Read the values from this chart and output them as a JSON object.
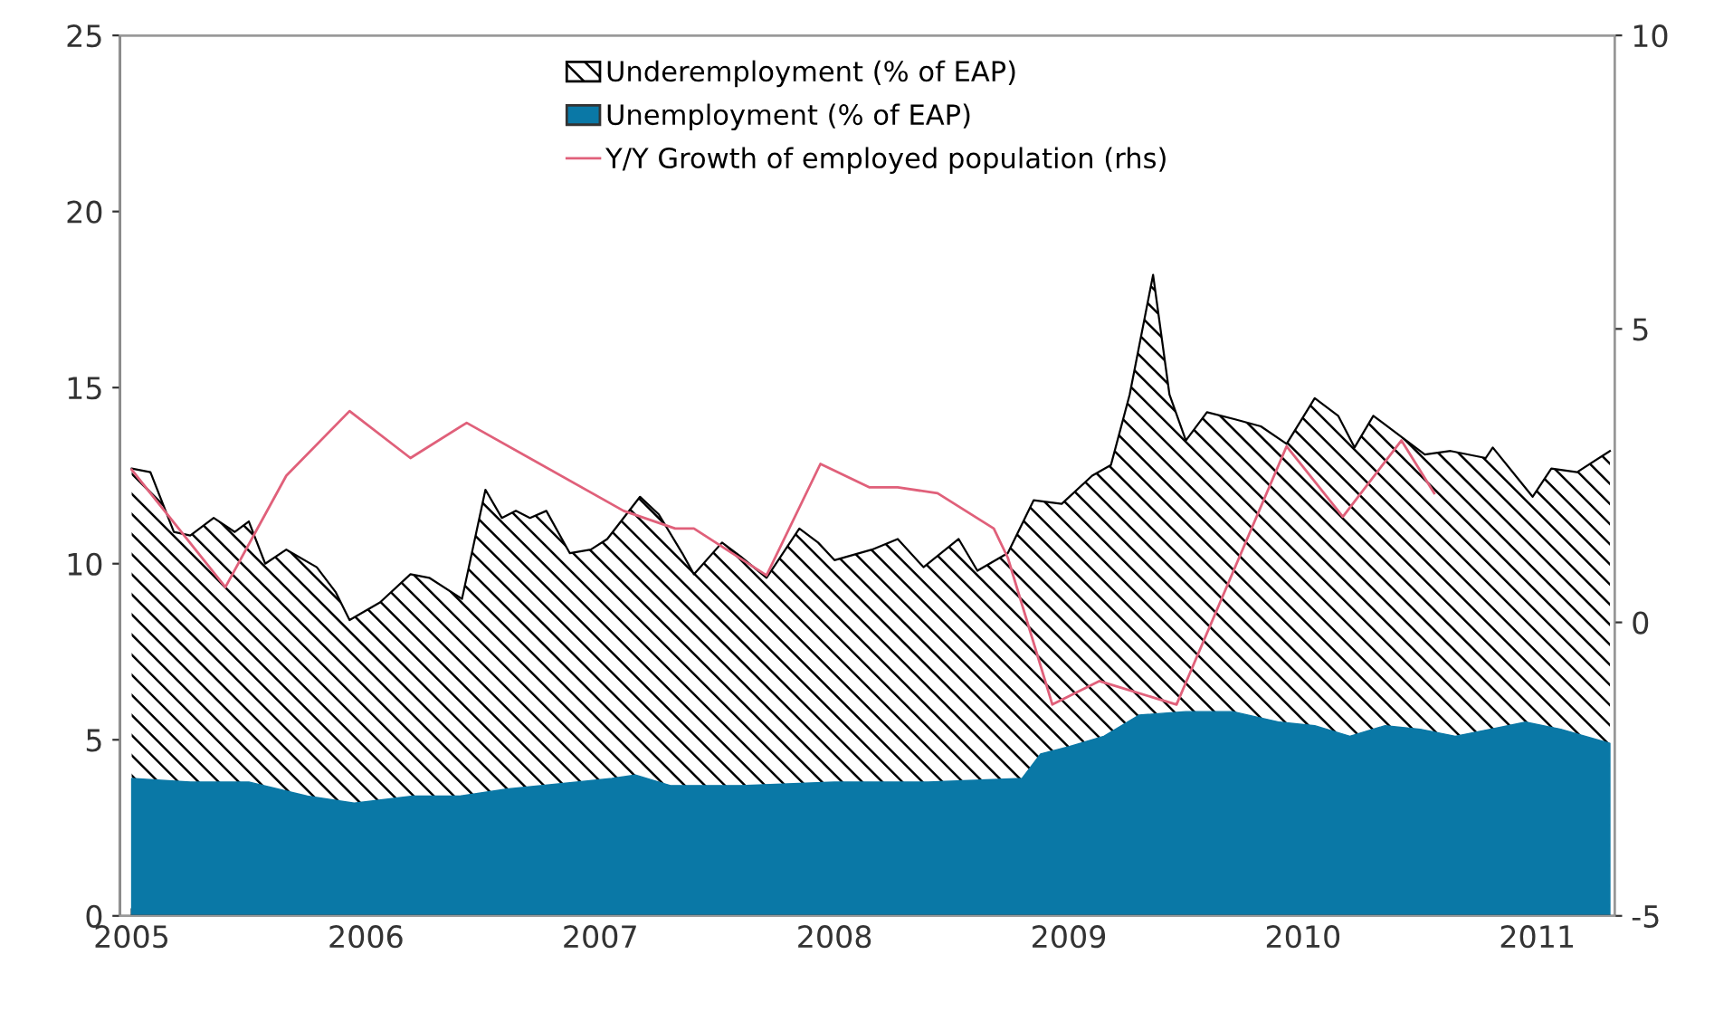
{
  "chart_data": {
    "type": "area",
    "xlim": [
      2004.95,
      2011.33
    ],
    "xticks": [
      2005,
      2006,
      2007,
      2008,
      2009,
      2010,
      2011
    ],
    "ylim": [
      0,
      25
    ],
    "yticks": [
      0,
      5,
      10,
      15,
      20,
      25
    ],
    "y2lim": [
      -5,
      10
    ],
    "y2ticks": [
      -5,
      0,
      5,
      10
    ],
    "legend": "top",
    "grid": false,
    "series": [
      {
        "name": "Underemployment (% of EAP)",
        "color": "#000000",
        "x": [
          2005.0,
          2005.08,
          2005.18,
          2005.25,
          2005.35,
          2005.44,
          2005.5,
          2005.57,
          2005.66,
          2005.79,
          2005.87,
          2005.93,
          2006.06,
          2006.19,
          2006.27,
          2006.41,
          2006.51,
          2006.58,
          2006.64,
          2006.7,
          2006.77,
          2006.87,
          2006.96,
          2007.03,
          2007.17,
          2007.25,
          2007.35,
          2007.4,
          2007.52,
          2007.6,
          2007.71,
          2007.85,
          2007.93,
          2008.0,
          2008.16,
          2008.27,
          2008.38,
          2008.53,
          2008.61,
          2008.74,
          2008.85,
          2008.97,
          2009.1,
          2009.18,
          2009.26,
          2009.36,
          2009.43,
          2009.5,
          2009.59,
          2009.71,
          2009.82,
          2009.93,
          2010.05,
          2010.15,
          2010.22,
          2010.3,
          2010.42,
          2010.52,
          2010.63,
          2010.78,
          2010.81,
          2010.98,
          2011.06,
          2011.17,
          2011.31
        ],
        "values": [
          12.7,
          12.6,
          10.9,
          10.8,
          11.3,
          10.9,
          11.2,
          10.0,
          10.4,
          9.9,
          9.2,
          8.4,
          8.9,
          9.7,
          9.6,
          9.0,
          12.1,
          11.3,
          11.5,
          11.3,
          11.5,
          10.3,
          10.4,
          10.7,
          11.9,
          11.4,
          10.3,
          9.7,
          10.6,
          10.2,
          9.6,
          11.0,
          10.6,
          10.1,
          10.4,
          10.7,
          9.9,
          10.7,
          9.8,
          10.3,
          11.8,
          11.7,
          12.5,
          12.8,
          14.8,
          18.2,
          14.8,
          13.5,
          14.3,
          14.1,
          13.9,
          13.4,
          14.7,
          14.2,
          13.3,
          14.2,
          13.6,
          13.1,
          13.2,
          13.0,
          13.3,
          11.9,
          12.7,
          12.6,
          13.2
        ]
      },
      {
        "name": "Unemployment (% of EAP)",
        "color": "#0a78a6",
        "x": [
          2005.0,
          2005.25,
          2005.5,
          2005.75,
          2005.95,
          2006.2,
          2006.4,
          2006.6,
          2006.9,
          2007.05,
          2007.15,
          2007.3,
          2007.6,
          2008.0,
          2008.4,
          2008.8,
          2008.88,
          2009.0,
          2009.15,
          2009.3,
          2009.5,
          2009.7,
          2009.9,
          2010.05,
          2010.2,
          2010.35,
          2010.5,
          2010.65,
          2010.8,
          2010.95,
          2011.1,
          2011.31
        ],
        "values": [
          3.9,
          3.8,
          3.8,
          3.4,
          3.2,
          3.4,
          3.4,
          3.6,
          3.8,
          3.9,
          4.0,
          3.7,
          3.7,
          3.8,
          3.8,
          3.9,
          4.6,
          4.8,
          5.1,
          5.7,
          5.8,
          5.8,
          5.5,
          5.4,
          5.1,
          5.4,
          5.3,
          5.1,
          5.3,
          5.5,
          5.3,
          4.9
        ]
      },
      {
        "name": "Y/Y Growth of employed population (rhs)",
        "type": "line",
        "axis": "y2",
        "color": "#e0607a",
        "x": [
          2005.0,
          2005.4,
          2005.66,
          2005.93,
          2006.19,
          2006.43,
          2007.1,
          2007.32,
          2007.4,
          2007.71,
          2007.94,
          2008.15,
          2008.27,
          2008.44,
          2008.68,
          2008.74,
          2008.93,
          2009.13,
          2009.46,
          2009.93,
          2010.17,
          2010.42,
          2010.56
        ],
        "values": [
          2.6,
          0.6,
          2.5,
          3.6,
          2.8,
          3.4,
          1.9,
          1.6,
          1.6,
          0.8,
          2.7,
          2.3,
          2.3,
          2.2,
          1.6,
          1.1,
          -1.4,
          -1.0,
          -1.4,
          3.0,
          1.8,
          3.1,
          2.2
        ]
      }
    ]
  }
}
